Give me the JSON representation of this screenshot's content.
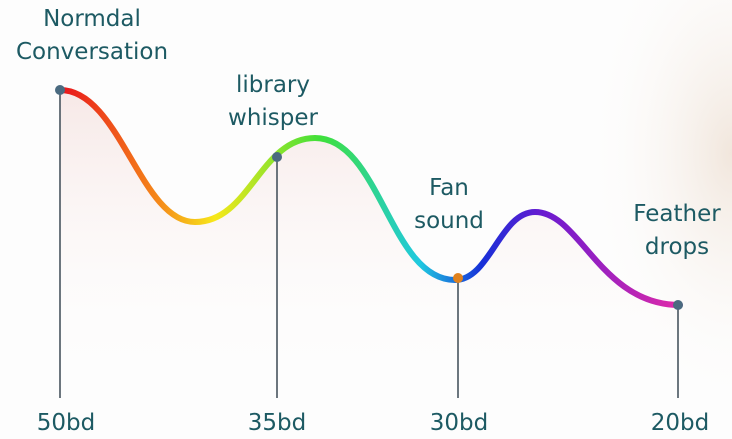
{
  "points": [
    {
      "label": [
        "Normdal",
        "Conversation"
      ],
      "level": "50bd"
    },
    {
      "label": [
        "library",
        "whisper"
      ],
      "level": "35bd"
    },
    {
      "label": [
        "Fan",
        "sound"
      ],
      "level": "30bd"
    },
    {
      "label": [
        "Feather",
        "drops"
      ],
      "level": "20bd"
    }
  ]
}
